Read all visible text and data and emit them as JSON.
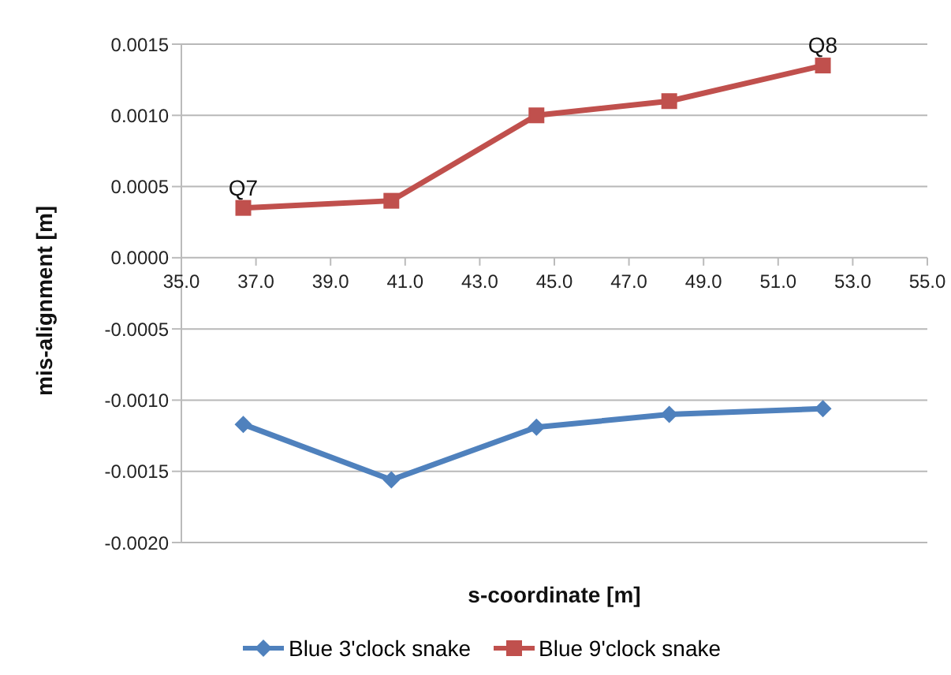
{
  "chart_data": {
    "type": "line",
    "xlabel": "s-coordinate [m]",
    "ylabel": "mis-alignment [m]",
    "x": [
      36.66,
      40.63,
      44.52,
      48.08,
      52.2
    ],
    "series": [
      {
        "name": "Blue 3'clock snake",
        "color": "#4f81bd",
        "marker": "diamond",
        "values": [
          -0.00117,
          -0.00156,
          -0.00119,
          -0.0011,
          -0.00106
        ]
      },
      {
        "name": "Blue 9'clock snake",
        "color": "#c0504d",
        "marker": "square",
        "values": [
          0.00035,
          0.0004,
          0.001,
          0.0011,
          0.00135
        ]
      }
    ],
    "xlim": [
      35,
      55
    ],
    "xticks": [
      {
        "value": 35,
        "label": "35.0"
      },
      {
        "value": 37,
        "label": "37.0"
      },
      {
        "value": 39,
        "label": "39.0"
      },
      {
        "value": 41,
        "label": "41.0"
      },
      {
        "value": 43,
        "label": "43.0"
      },
      {
        "value": 45,
        "label": "45.0"
      },
      {
        "value": 47,
        "label": "47.0"
      },
      {
        "value": 49,
        "label": "49.0"
      },
      {
        "value": 51,
        "label": "51.0"
      },
      {
        "value": 53,
        "label": "53.0"
      },
      {
        "value": 55,
        "label": "55.0"
      }
    ],
    "ylim": [
      -0.002,
      0.0015
    ],
    "yticks": [
      {
        "value": -0.002,
        "label": "-0.0020"
      },
      {
        "value": -0.0015,
        "label": "-0.0015"
      },
      {
        "value": -0.001,
        "label": "-0.0010"
      },
      {
        "value": -0.0005,
        "label": "-0.0005"
      },
      {
        "value": 0,
        "label": "0.0000"
      },
      {
        "value": 0.0005,
        "label": "0.0005"
      },
      {
        "value": 0.001,
        "label": "0.0010"
      },
      {
        "value": 0.0015,
        "label": "0.0015"
      }
    ],
    "grid": "y",
    "legend": "bottom",
    "line_style": "solid",
    "annotations": [
      {
        "text": "Q7",
        "x": 36.66,
        "y": 0.00035
      },
      {
        "text": "Q8",
        "x": 52.2,
        "y": 0.00135
      }
    ]
  }
}
